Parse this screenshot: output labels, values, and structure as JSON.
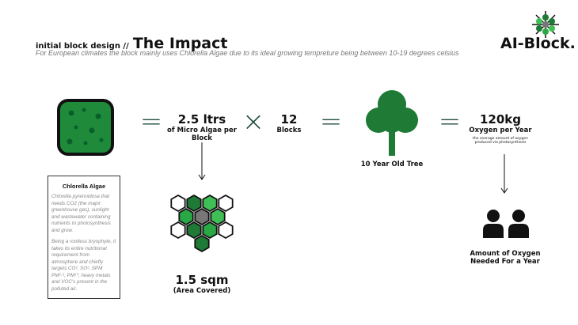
{
  "header": {
    "kicker": "initial block design //",
    "title": "The Impact",
    "subtitle": "For European climates the block mainly uses Chlorella Algae due to its ideal growing tempreture being between 10-19 degrees celsius"
  },
  "logo": {
    "text": "AI-Block."
  },
  "algae": {
    "amount": "2.5 ltrs",
    "caption": "of Micro Algae per Block"
  },
  "operators": {
    "equals": "=",
    "times": "×"
  },
  "blocks": {
    "count": "12",
    "label": "Blocks"
  },
  "tree": {
    "label": "10 Year Old Tree"
  },
  "oxygen": {
    "amount": "120kg",
    "label": "Oxygen per Year",
    "note": "the average amount of oxygen produced via photosynthesis"
  },
  "area": {
    "value": "1.5 sqm",
    "label": "(Area Covered)"
  },
  "people": {
    "label": "Amount of Oxygen Needed For a Year"
  },
  "info_box": {
    "title": "Chlorella Algae",
    "p1": "Chlorella pyrenoidosa that needs CO2 (the major greenhouse gas), sunlight and wastewater containing nutrients to photosynthesis and grow.",
    "p2": "Being a rootless bryophyte, it takes its entire nutritional requirement from atmosphere and chiefly targets CO², SO², SPM PM²·⁵, PM¹⁰, heavy metals and VOC's present in the polluted air."
  },
  "colors": {
    "green": "#1e7a35",
    "dark": "#1f4d3a"
  }
}
